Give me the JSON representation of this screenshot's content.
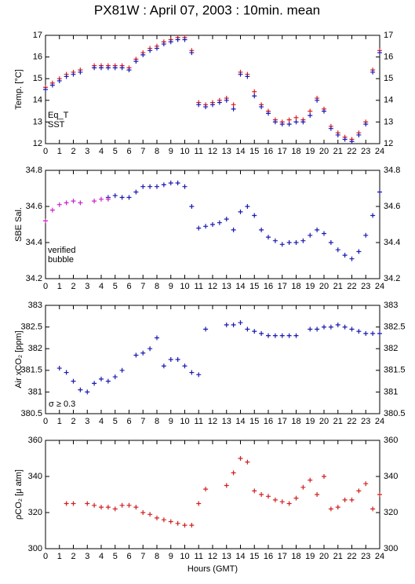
{
  "title": "PX81W : April 07, 2003 : 10min. mean",
  "chart_data": [
    {
      "type": "scatter",
      "ylabel": "Temp. [°C]",
      "xlim": [
        0,
        24
      ],
      "xticks": [
        0,
        1,
        2,
        3,
        4,
        5,
        6,
        7,
        8,
        9,
        10,
        11,
        12,
        13,
        14,
        15,
        16,
        17,
        18,
        19,
        20,
        21,
        22,
        23,
        24
      ],
      "ylim": [
        12,
        17
      ],
      "yticks": [
        12,
        13,
        14,
        15,
        16,
        17
      ],
      "x": [
        0,
        0.5,
        1,
        1.5,
        2,
        2.5,
        3,
        3.5,
        4,
        4.5,
        5,
        5.5,
        6,
        6.5,
        7,
        7.5,
        8,
        8.5,
        9,
        9.5,
        10,
        10.5,
        11,
        11.5,
        12,
        12.5,
        13,
        13.5,
        14,
        14.5,
        15,
        15.5,
        16,
        16.5,
        17,
        17.5,
        18,
        18.5,
        19,
        19.5,
        20,
        20.5,
        21,
        21.5,
        22,
        22.5,
        23,
        23.5,
        24
      ],
      "series": [
        {
          "name": "Eq_T",
          "color": "#e02020",
          "values": [
            14.6,
            14.8,
            15.0,
            15.2,
            15.3,
            15.4,
            null,
            15.6,
            15.6,
            15.6,
            15.6,
            15.6,
            15.5,
            15.9,
            16.2,
            16.4,
            16.5,
            16.7,
            16.8,
            16.9,
            16.9,
            16.3,
            13.9,
            13.8,
            13.9,
            14.0,
            14.1,
            13.8,
            15.3,
            15.2,
            14.4,
            13.8,
            13.5,
            13.1,
            13.0,
            13.1,
            13.2,
            13.1,
            13.5,
            14.1,
            13.6,
            12.8,
            12.5,
            12.3,
            12.2,
            12.5,
            13.0,
            15.4,
            16.3
          ]
        },
        {
          "name": "SST",
          "color": "#1a1ab0",
          "values": [
            14.5,
            14.7,
            14.9,
            15.1,
            15.2,
            15.3,
            null,
            15.5,
            15.5,
            15.5,
            15.5,
            15.5,
            15.4,
            15.8,
            16.1,
            16.3,
            16.4,
            16.6,
            16.7,
            16.8,
            16.8,
            16.2,
            13.8,
            13.7,
            13.8,
            13.9,
            14.0,
            13.6,
            15.2,
            15.1,
            14.2,
            13.7,
            13.4,
            13.0,
            12.9,
            12.9,
            13.0,
            13.0,
            13.3,
            14.0,
            13.5,
            12.7,
            12.4,
            12.2,
            12.1,
            12.4,
            12.9,
            15.3,
            16.2
          ]
        }
      ]
    },
    {
      "type": "scatter",
      "ylabel": "SBE Sal.",
      "xlim": [
        0,
        24
      ],
      "xticks": [
        0,
        1,
        2,
        3,
        4,
        5,
        6,
        7,
        8,
        9,
        10,
        11,
        12,
        13,
        14,
        15,
        16,
        17,
        18,
        19,
        20,
        21,
        22,
        23,
        24
      ],
      "ylim": [
        34.2,
        34.8
      ],
      "yticks": [
        34.2,
        34.4,
        34.6,
        34.8
      ],
      "x": [
        0,
        0.5,
        1,
        1.5,
        2,
        2.5,
        3,
        3.5,
        4,
        4.5,
        5,
        5.5,
        6,
        6.5,
        7,
        7.5,
        8,
        8.5,
        9,
        9.5,
        10,
        10.5,
        11,
        11.5,
        12,
        12.5,
        13,
        13.5,
        14,
        14.5,
        15,
        15.5,
        16,
        16.5,
        17,
        17.5,
        18,
        18.5,
        19,
        19.5,
        20,
        20.5,
        21,
        21.5,
        22,
        22.5,
        23,
        23.5,
        24
      ],
      "series": [
        {
          "name": "verified",
          "color": "#1a1ab0",
          "values": [
            null,
            null,
            null,
            null,
            null,
            null,
            null,
            null,
            null,
            34.65,
            34.66,
            34.65,
            34.65,
            34.68,
            34.71,
            34.71,
            34.71,
            34.72,
            34.73,
            34.73,
            34.71,
            34.6,
            34.48,
            34.49,
            34.5,
            34.51,
            34.53,
            34.47,
            34.57,
            34.6,
            34.55,
            34.47,
            34.43,
            34.41,
            34.39,
            34.4,
            34.4,
            34.41,
            34.44,
            34.47,
            34.45,
            34.4,
            34.36,
            34.33,
            34.31,
            34.35,
            34.44,
            34.55,
            34.68
          ]
        },
        {
          "name": "bubble",
          "color": "#cc22cc",
          "values": [
            34.52,
            34.58,
            34.61,
            34.62,
            34.63,
            34.62,
            null,
            34.63,
            34.64,
            34.64,
            null,
            null,
            null,
            null,
            null,
            null,
            null,
            null,
            null,
            null,
            null,
            null,
            null,
            null,
            null,
            null,
            null,
            null,
            null,
            null,
            null,
            null,
            null,
            null,
            null,
            null,
            null,
            null,
            null,
            null,
            null,
            null,
            null,
            null,
            null,
            null,
            null,
            null,
            null
          ]
        }
      ]
    },
    {
      "type": "scatter",
      "ylabel": "Air xCO₂ [ppm]",
      "annotation": "σ ≥ 0.3",
      "annotation_color": "#cc22cc",
      "xlim": [
        0,
        24
      ],
      "xticks": [
        0,
        1,
        2,
        3,
        4,
        5,
        6,
        7,
        8,
        9,
        10,
        11,
        12,
        13,
        14,
        15,
        16,
        17,
        18,
        19,
        20,
        21,
        22,
        23,
        24
      ],
      "ylim": [
        380.5,
        383
      ],
      "yticks": [
        380.5,
        381,
        381.5,
        382,
        382.5,
        383
      ],
      "x": [
        0,
        0.5,
        1,
        1.5,
        2,
        2.5,
        3,
        3.5,
        4,
        4.5,
        5,
        5.5,
        6,
        6.5,
        7,
        7.5,
        8,
        8.5,
        9,
        9.5,
        10,
        10.5,
        11,
        11.5,
        12,
        12.5,
        13,
        13.5,
        14,
        14.5,
        15,
        15.5,
        16,
        16.5,
        17,
        17.5,
        18,
        18.5,
        19,
        19.5,
        20,
        20.5,
        21,
        21.5,
        22,
        22.5,
        23,
        23.5,
        24
      ],
      "series": [
        {
          "color": "#1a1ab0",
          "values": [
            null,
            null,
            381.55,
            381.45,
            381.25,
            381.05,
            381.0,
            381.2,
            381.3,
            381.25,
            381.35,
            381.5,
            null,
            381.85,
            381.9,
            382.0,
            382.25,
            381.6,
            381.75,
            381.75,
            381.6,
            381.45,
            381.4,
            382.45,
            null,
            null,
            382.55,
            382.55,
            382.6,
            382.45,
            382.4,
            382.35,
            382.3,
            382.3,
            382.3,
            382.3,
            382.3,
            null,
            382.45,
            382.45,
            382.5,
            382.5,
            382.55,
            382.5,
            382.45,
            382.4,
            382.35,
            382.35,
            382.35
          ]
        }
      ]
    },
    {
      "type": "scatter",
      "ylabel": "ρCO₂ [μ atm]",
      "xlabel": "Hours (GMT)",
      "xlim": [
        0,
        24
      ],
      "xticks": [
        0,
        1,
        2,
        3,
        4,
        5,
        6,
        7,
        8,
        9,
        10,
        11,
        12,
        13,
        14,
        15,
        16,
        17,
        18,
        19,
        20,
        21,
        22,
        23,
        24
      ],
      "ylim": [
        300,
        360
      ],
      "yticks": [
        300,
        320,
        340,
        360
      ],
      "x": [
        0,
        0.5,
        1,
        1.5,
        2,
        2.5,
        3,
        3.5,
        4,
        4.5,
        5,
        5.5,
        6,
        6.5,
        7,
        7.5,
        8,
        8.5,
        9,
        9.5,
        10,
        10.5,
        11,
        11.5,
        12,
        12.5,
        13,
        13.5,
        14,
        14.5,
        15,
        15.5,
        16,
        16.5,
        17,
        17.5,
        18,
        18.5,
        19,
        19.5,
        20,
        20.5,
        21,
        21.5,
        22,
        22.5,
        23,
        23.5,
        24
      ],
      "series": [
        {
          "color": "#d02020",
          "values": [
            null,
            null,
            null,
            325,
            325,
            null,
            325,
            324,
            323,
            323,
            322,
            324,
            324,
            323,
            320,
            319,
            317,
            316,
            315,
            314,
            313,
            313,
            325,
            333,
            null,
            null,
            335,
            342,
            350,
            348,
            332,
            330,
            329,
            327,
            326,
            325,
            328,
            334,
            338,
            330,
            340,
            322,
            323,
            327,
            327,
            332,
            336,
            322,
            330
          ]
        }
      ]
    }
  ]
}
